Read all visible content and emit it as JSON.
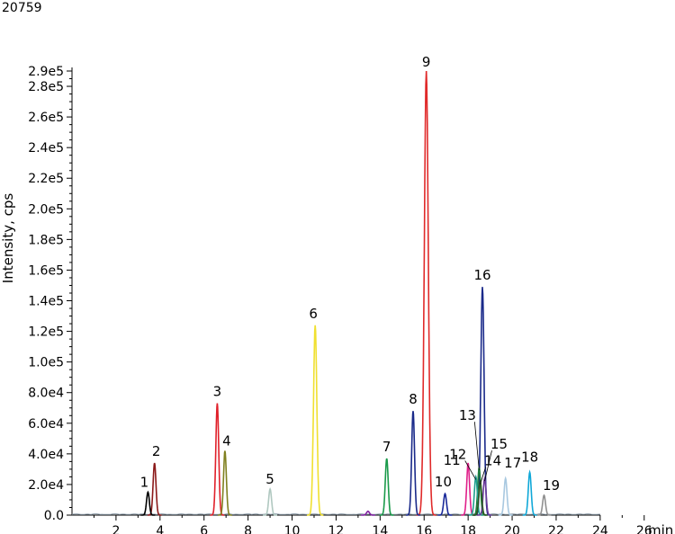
{
  "header": {
    "corner_label": "20759"
  },
  "chart_data": {
    "type": "line",
    "title": "",
    "xlabel": "",
    "x_unit": "min",
    "ylabel": "Intensity, cps",
    "xlim": [
      0,
      27.4
    ],
    "ylim": [
      0,
      290000
    ],
    "x_ticks": [
      {
        "value": 2,
        "label": "2"
      },
      {
        "value": 4,
        "label": "4"
      },
      {
        "value": 6,
        "label": "6"
      },
      {
        "value": 8,
        "label": "8"
      },
      {
        "value": 10,
        "label": "10"
      },
      {
        "value": 12,
        "label": "12"
      },
      {
        "value": 14,
        "label": "14"
      },
      {
        "value": 16,
        "label": "16"
      },
      {
        "value": 18,
        "label": "18"
      },
      {
        "value": 20,
        "label": "20"
      },
      {
        "value": 22,
        "label": "22"
      },
      {
        "value": 24,
        "label": "24"
      },
      {
        "value": 26,
        "label": "26"
      }
    ],
    "y_ticks": [
      {
        "value": 0,
        "label": "0.0"
      },
      {
        "value": 20000,
        "label": "2.0e4"
      },
      {
        "value": 40000,
        "label": "4.0e4"
      },
      {
        "value": 60000,
        "label": "6.0e4"
      },
      {
        "value": 80000,
        "label": "8.0e4"
      },
      {
        "value": 100000,
        "label": "1.0e5"
      },
      {
        "value": 120000,
        "label": "1.2e5"
      },
      {
        "value": 140000,
        "label": "1.4e5"
      },
      {
        "value": 160000,
        "label": "1.6e5"
      },
      {
        "value": 180000,
        "label": "1.8e5"
      },
      {
        "value": 200000,
        "label": "2.0e5"
      },
      {
        "value": 220000,
        "label": "2.2e5"
      },
      {
        "value": 240000,
        "label": "2.4e5"
      },
      {
        "value": 260000,
        "label": "2.6e5"
      },
      {
        "value": 280000,
        "label": "2.8e5"
      },
      {
        "value": 290000,
        "label": "2.9e5"
      }
    ],
    "grid": false,
    "peaks": [
      {
        "label": "1",
        "rt": 3.45,
        "height": 15000,
        "color": "#000000"
      },
      {
        "label": "2",
        "rt": 3.75,
        "height": 34000,
        "color": "#8b1a1a"
      },
      {
        "label": "3",
        "rt": 6.6,
        "height": 73000,
        "color": "#e0202a"
      },
      {
        "label": "4",
        "rt": 6.95,
        "height": 42000,
        "color": "#808020"
      },
      {
        "label": "5",
        "rt": 9.0,
        "height": 17000,
        "color": "#b0c8c0"
      },
      {
        "label": "6",
        "rt": 11.05,
        "height": 124000,
        "color": "#f0e030"
      },
      {
        "label": "7",
        "rt": 14.3,
        "height": 37000,
        "color": "#1a9a4a"
      },
      {
        "label": "8",
        "rt": 15.5,
        "height": 68000,
        "color": "#1a2a8a"
      },
      {
        "label": "9",
        "rt": 16.1,
        "height": 290000,
        "color": "#e02a2a"
      },
      {
        "label": "10",
        "rt": 16.95,
        "height": 14000,
        "color": "#1a2a9a"
      },
      {
        "label": "11",
        "rt": 18.0,
        "height": 34000,
        "color": "#e0208a"
      },
      {
        "label": "12",
        "rt": 18.35,
        "height": 25000,
        "color": "#20a090"
      },
      {
        "label": "13",
        "rt": 18.5,
        "height": 31000,
        "color": "#208040"
      },
      {
        "label": "14",
        "rt": 18.55,
        "height": 22000,
        "color": "#2a5a20"
      },
      {
        "label": "15",
        "rt": 18.75,
        "height": 24000,
        "color": "#6a3a9a"
      },
      {
        "label": "16",
        "rt": 18.65,
        "height": 149000,
        "color": "#1a2a8a"
      },
      {
        "label": "17",
        "rt": 19.7,
        "height": 24000,
        "color": "#a8c8e0"
      },
      {
        "label": "18",
        "rt": 20.8,
        "height": 28000,
        "color": "#10a8d8"
      },
      {
        "label": "19",
        "rt": 21.45,
        "height": 13000,
        "color": "#909090"
      }
    ],
    "minor_peaks": [
      {
        "rt": 13.45,
        "height": 2500,
        "color": "#8020a0"
      }
    ]
  }
}
